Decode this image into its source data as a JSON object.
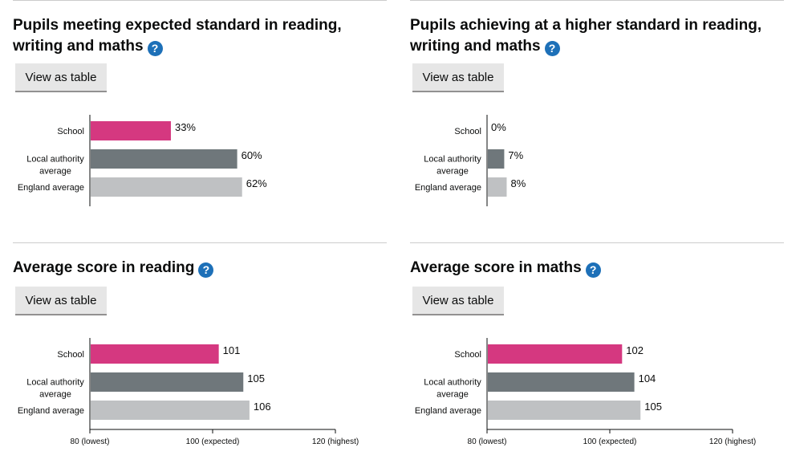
{
  "help_glyph": "?",
  "button_label": "View as table",
  "colors": {
    "school": "#d53880",
    "local_authority": "#6f777b",
    "england": "#bfc1c3",
    "help": "#1d70b8"
  },
  "panels": [
    {
      "title": "Pupils meeting expected standard in reading, writing and maths"
    },
    {
      "title": "Pupils achieving at a higher standard in reading, writing and maths"
    },
    {
      "title": "Average score in reading"
    },
    {
      "title": "Average score in maths"
    }
  ],
  "chart_data": [
    {
      "type": "bar",
      "orientation": "horizontal",
      "categories": [
        [
          "School"
        ],
        [
          "Local authority",
          "average"
        ],
        [
          "England average"
        ]
      ],
      "values": [
        33,
        60,
        62
      ],
      "value_labels": [
        "33%",
        "60%",
        "62%"
      ],
      "xlim": [
        0,
        100
      ],
      "ticks": []
    },
    {
      "type": "bar",
      "orientation": "horizontal",
      "categories": [
        [
          "School"
        ],
        [
          "Local authority",
          "average"
        ],
        [
          "England average"
        ]
      ],
      "values": [
        0,
        7,
        8
      ],
      "value_labels": [
        "0%",
        "7%",
        "8%"
      ],
      "xlim": [
        0,
        100
      ],
      "ticks": []
    },
    {
      "type": "bar",
      "orientation": "horizontal",
      "categories": [
        [
          "School"
        ],
        [
          "Local authority",
          "average"
        ],
        [
          "England average"
        ]
      ],
      "values": [
        101,
        105,
        106
      ],
      "value_labels": [
        "101",
        "105",
        "106"
      ],
      "xlim": [
        80,
        120
      ],
      "ticks": [
        {
          "value": 80,
          "label": "80 (lowest)"
        },
        {
          "value": 100,
          "label": "100 (expected)"
        },
        {
          "value": 120,
          "label": "120 (highest)"
        }
      ]
    },
    {
      "type": "bar",
      "orientation": "horizontal",
      "categories": [
        [
          "School"
        ],
        [
          "Local authority",
          "average"
        ],
        [
          "England average"
        ]
      ],
      "values": [
        102,
        104,
        105
      ],
      "value_labels": [
        "102",
        "104",
        "105"
      ],
      "xlim": [
        80,
        120
      ],
      "ticks": [
        {
          "value": 80,
          "label": "80 (lowest)"
        },
        {
          "value": 100,
          "label": "100 (expected)"
        },
        {
          "value": 120,
          "label": "120 (highest)"
        }
      ]
    }
  ]
}
